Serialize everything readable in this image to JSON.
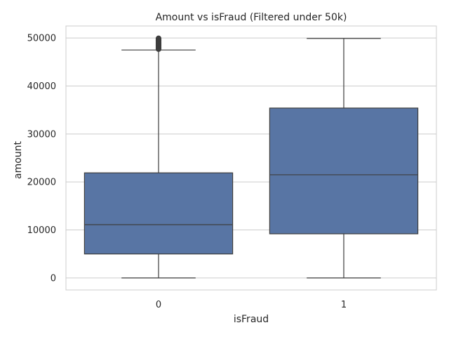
{
  "chart_data": {
    "type": "box",
    "title": "Amount vs isFraud (Filtered under 50k)",
    "xlabel": "isFraud",
    "ylabel": "amount",
    "categories": [
      "0",
      "1"
    ],
    "ylim": [
      -2500,
      52500
    ],
    "yticks": [
      0,
      10000,
      20000,
      30000,
      40000,
      50000
    ],
    "y_tick_labels": [
      "0",
      "10000",
      "20000",
      "30000",
      "40000",
      "50000"
    ],
    "grid": true,
    "box_color": "#5875a4",
    "line_color": "#3d3d3d",
    "series": [
      {
        "category": "0",
        "whisker_low": 0,
        "q1": 5000,
        "median": 11100,
        "q3": 21900,
        "whisker_high": 47500,
        "outliers": [
          47700,
          47900,
          48100,
          48300,
          48500,
          48700,
          48900,
          49100,
          49300,
          49500,
          49700,
          49900
        ]
      },
      {
        "category": "1",
        "whisker_low": 0,
        "q1": 9200,
        "median": 21500,
        "q3": 35400,
        "whisker_high": 49900,
        "outliers": []
      }
    ]
  }
}
